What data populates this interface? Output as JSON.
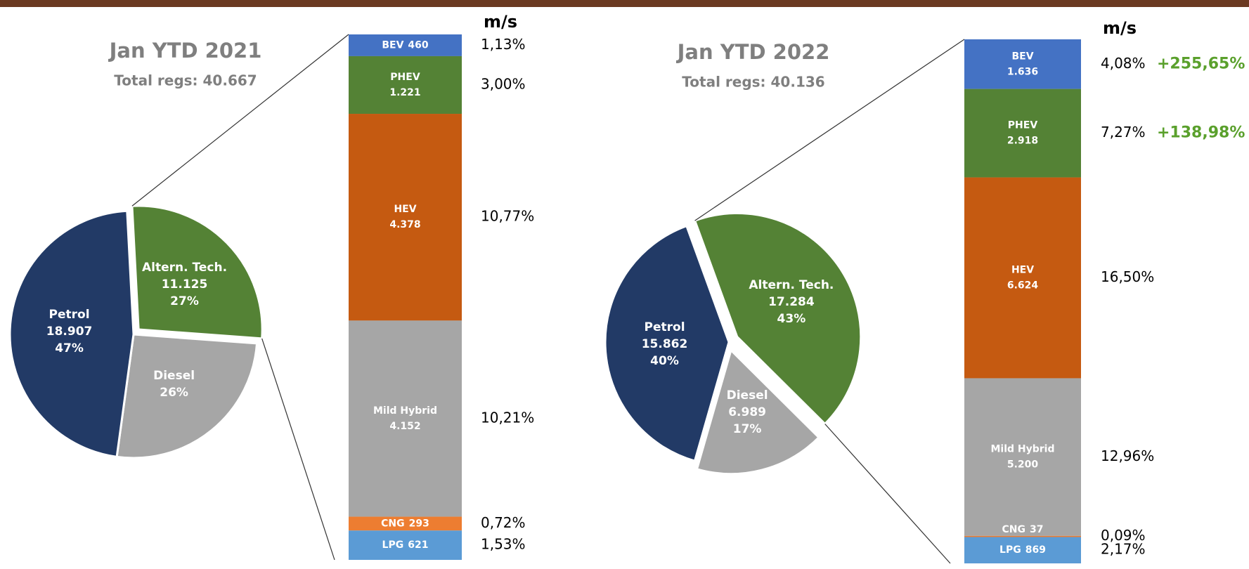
{
  "chart_data": [
    {
      "type": "pie",
      "title": "Jan YTD 2021",
      "subtitle": "Total regs: 40.667",
      "categories": [
        "Altern. Tech.",
        "Diesel",
        "Petrol"
      ],
      "values": [
        27,
        26,
        47
      ],
      "value_labels": [
        "27%",
        "26%",
        "47%"
      ],
      "counts": [
        11125,
        null,
        18907
      ],
      "count_labels": [
        "11.125",
        null,
        "18.907"
      ],
      "colors": [
        "#548235",
        "#a6a6a6",
        "#223a66"
      ],
      "breakdown": {
        "share_title": "m/s",
        "categories": [
          "BEV",
          "PHEV",
          "HEV",
          "Mild Hybrid",
          "CNG",
          "LPG"
        ],
        "values": [
          460,
          1221,
          4378,
          4152,
          293,
          621
        ],
        "value_labels": [
          "460",
          "1.221",
          "4.378",
          "4.152",
          "293",
          "621"
        ],
        "colors": [
          "#4472c4",
          "#548235",
          "#c55a11",
          "#a6a6a6",
          "#ed7d31",
          "#5b9bd5"
        ],
        "shares": [
          1.13,
          3.0,
          10.77,
          10.21,
          0.72,
          1.53
        ],
        "share_labels": [
          "1,13%",
          "3,00%",
          "10,77%",
          "10,21%",
          "0,72%",
          "1,53%"
        ]
      }
    },
    {
      "type": "pie",
      "title": "Jan YTD 2022",
      "subtitle": "Total regs: 40.136",
      "categories": [
        "Altern. Tech.",
        "Diesel",
        "Petrol"
      ],
      "values": [
        43,
        17,
        40
      ],
      "value_labels": [
        "43%",
        "17%",
        "40%"
      ],
      "counts": [
        17284,
        6989,
        15862
      ],
      "count_labels": [
        "17.284",
        "6.989",
        "15.862"
      ],
      "colors": [
        "#548235",
        "#a6a6a6",
        "#223a66"
      ],
      "breakdown": {
        "share_title": "m/s",
        "categories": [
          "BEV",
          "PHEV",
          "HEV",
          "Mild Hybrid",
          "CNG",
          "LPG"
        ],
        "values": [
          1636,
          2918,
          6624,
          5200,
          37,
          869
        ],
        "value_labels": [
          "1.636",
          "2.918",
          "6.624",
          "5.200",
          "37",
          "869"
        ],
        "colors": [
          "#4472c4",
          "#548235",
          "#c55a11",
          "#a6a6a6",
          "#ed7d31",
          "#5b9bd5"
        ],
        "shares": [
          4.08,
          7.27,
          16.5,
          12.96,
          0.09,
          2.17
        ],
        "share_labels": [
          "4,08%",
          "7,27%",
          "16,50%",
          "12,96%",
          "0,09%",
          "2,17%"
        ],
        "growth": [
          255.65,
          138.98,
          null,
          null,
          null,
          null
        ],
        "growth_labels": [
          "+255,65%",
          "+138,98%",
          null,
          null,
          null,
          null
        ],
        "growth_color": "#5aa02c"
      }
    }
  ]
}
